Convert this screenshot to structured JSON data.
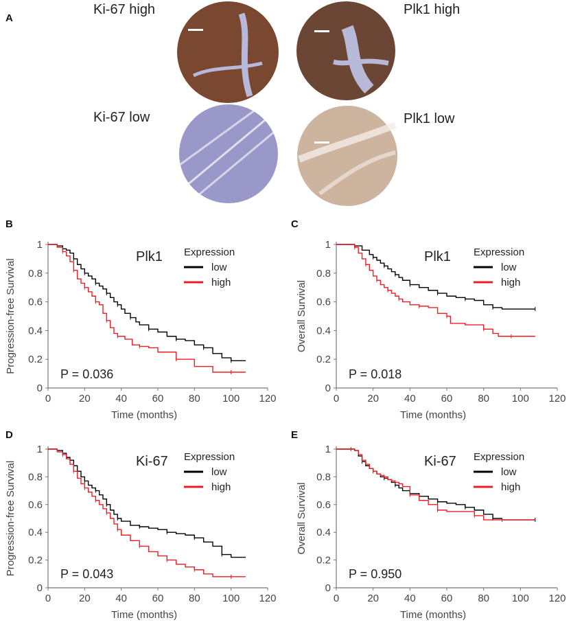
{
  "panel_letters": [
    "A",
    "B",
    "C",
    "D",
    "E"
  ],
  "ihc": {
    "labels": [
      "Ki-67 high",
      "Plk1 high",
      "Ki-67 low",
      "Plk1 low"
    ],
    "colors": {
      "high_ki67": "#7a4730",
      "high_plk1": "#6b4634",
      "low_ki67": "#9a98c8",
      "low_plk1": "#cdb49f",
      "stroma": "#b8b8d8"
    }
  },
  "legend_colors": {
    "low": "#000000",
    "high": "#ee1c25"
  },
  "chart_data": [
    {
      "panel": "B",
      "type": "line",
      "title": "Plk1",
      "ylabel": "Progression-free  Survival",
      "xlabel": "Time  (months)",
      "xlim": [
        0,
        120
      ],
      "ylim": [
        0,
        1
      ],
      "xticks": [
        0,
        20,
        40,
        60,
        80,
        100,
        120
      ],
      "yticks": [
        0,
        0.2,
        0.4,
        0.6,
        0.8,
        1
      ],
      "legend_title": "Expression",
      "p_value": "P = 0.036",
      "series": [
        {
          "name": "low",
          "color": "#000000",
          "x": [
            0,
            5,
            8,
            10,
            12,
            14,
            16,
            18,
            20,
            22,
            24,
            26,
            28,
            30,
            32,
            34,
            36,
            38,
            40,
            42,
            45,
            48,
            50,
            55,
            60,
            65,
            70,
            75,
            80,
            85,
            90,
            95,
            100,
            105,
            108
          ],
          "y": [
            1.0,
            0.99,
            0.97,
            0.96,
            0.94,
            0.9,
            0.86,
            0.83,
            0.8,
            0.78,
            0.76,
            0.73,
            0.71,
            0.69,
            0.66,
            0.63,
            0.6,
            0.58,
            0.55,
            0.52,
            0.49,
            0.46,
            0.44,
            0.41,
            0.39,
            0.36,
            0.34,
            0.33,
            0.3,
            0.28,
            0.24,
            0.21,
            0.19,
            0.19,
            0.19
          ]
        },
        {
          "name": "high",
          "color": "#ee1c25",
          "x": [
            0,
            5,
            8,
            10,
            12,
            14,
            16,
            18,
            20,
            22,
            24,
            26,
            28,
            30,
            32,
            34,
            36,
            38,
            42,
            46,
            50,
            55,
            60,
            70,
            80,
            90,
            100,
            108
          ],
          "y": [
            1.0,
            0.98,
            0.95,
            0.92,
            0.88,
            0.82,
            0.76,
            0.73,
            0.7,
            0.67,
            0.64,
            0.6,
            0.58,
            0.52,
            0.47,
            0.42,
            0.38,
            0.36,
            0.34,
            0.3,
            0.29,
            0.28,
            0.25,
            0.2,
            0.15,
            0.11,
            0.11,
            0.11
          ]
        }
      ]
    },
    {
      "panel": "C",
      "type": "line",
      "title": "Plk1",
      "ylabel": "Overall  Survival",
      "xlabel": "Time  (months)",
      "xlim": [
        0,
        120
      ],
      "ylim": [
        0,
        1
      ],
      "xticks": [
        0,
        20,
        40,
        60,
        80,
        100,
        120
      ],
      "yticks": [
        0,
        0.2,
        0.4,
        0.6,
        0.8,
        1
      ],
      "legend_title": "Expression",
      "p_value": "P = 0.018",
      "series": [
        {
          "name": "low",
          "color": "#000000",
          "x": [
            0,
            5,
            10,
            14,
            18,
            20,
            22,
            24,
            26,
            28,
            30,
            32,
            34,
            36,
            40,
            45,
            50,
            55,
            60,
            65,
            70,
            75,
            80,
            85,
            90,
            100,
            108
          ],
          "y": [
            1.0,
            1.0,
            0.99,
            0.96,
            0.93,
            0.91,
            0.89,
            0.87,
            0.85,
            0.83,
            0.81,
            0.79,
            0.77,
            0.75,
            0.72,
            0.7,
            0.68,
            0.66,
            0.64,
            0.63,
            0.62,
            0.61,
            0.58,
            0.56,
            0.55,
            0.55,
            0.55
          ]
        },
        {
          "name": "high",
          "color": "#ee1c25",
          "x": [
            0,
            5,
            10,
            12,
            14,
            16,
            18,
            20,
            22,
            24,
            26,
            28,
            30,
            32,
            34,
            36,
            40,
            45,
            50,
            55,
            60,
            62,
            70,
            80,
            85,
            88,
            95,
            108
          ],
          "y": [
            1.0,
            1.0,
            0.98,
            0.94,
            0.9,
            0.86,
            0.82,
            0.78,
            0.75,
            0.72,
            0.7,
            0.68,
            0.66,
            0.64,
            0.62,
            0.6,
            0.58,
            0.57,
            0.56,
            0.52,
            0.5,
            0.45,
            0.44,
            0.41,
            0.38,
            0.36,
            0.36,
            0.36
          ]
        }
      ]
    },
    {
      "panel": "D",
      "type": "line",
      "title": "Ki-67",
      "ylabel": "Progression-free  Survival",
      "xlabel": "Time  (months)",
      "xlim": [
        0,
        120
      ],
      "ylim": [
        0,
        1
      ],
      "xticks": [
        0,
        20,
        40,
        60,
        80,
        100,
        120
      ],
      "yticks": [
        0,
        0.2,
        0.4,
        0.6,
        0.8,
        1
      ],
      "legend_title": "Expression",
      "p_value": "P = 0.043",
      "series": [
        {
          "name": "low",
          "color": "#000000",
          "x": [
            0,
            5,
            8,
            10,
            12,
            14,
            16,
            18,
            20,
            22,
            24,
            26,
            28,
            30,
            32,
            34,
            36,
            38,
            40,
            45,
            50,
            55,
            60,
            65,
            70,
            75,
            80,
            85,
            90,
            95,
            100,
            108
          ],
          "y": [
            1.0,
            0.99,
            0.97,
            0.94,
            0.92,
            0.88,
            0.84,
            0.8,
            0.77,
            0.74,
            0.72,
            0.7,
            0.67,
            0.64,
            0.6,
            0.56,
            0.53,
            0.5,
            0.48,
            0.45,
            0.44,
            0.43,
            0.42,
            0.4,
            0.39,
            0.38,
            0.36,
            0.33,
            0.3,
            0.24,
            0.22,
            0.22
          ]
        },
        {
          "name": "high",
          "color": "#ee1c25",
          "x": [
            0,
            5,
            8,
            10,
            12,
            14,
            16,
            18,
            20,
            22,
            24,
            26,
            28,
            30,
            32,
            34,
            36,
            38,
            40,
            45,
            50,
            55,
            60,
            65,
            70,
            75,
            80,
            85,
            90,
            100,
            108
          ],
          "y": [
            1.0,
            0.98,
            0.96,
            0.93,
            0.89,
            0.84,
            0.79,
            0.75,
            0.72,
            0.69,
            0.66,
            0.63,
            0.6,
            0.57,
            0.54,
            0.5,
            0.46,
            0.42,
            0.38,
            0.34,
            0.3,
            0.26,
            0.23,
            0.2,
            0.17,
            0.15,
            0.13,
            0.1,
            0.08,
            0.08,
            0.08
          ]
        }
      ]
    },
    {
      "panel": "E",
      "type": "line",
      "title": "Ki-67",
      "ylabel": "Overall  Survival",
      "xlabel": "Time  (months)",
      "xlim": [
        0,
        120
      ],
      "ylim": [
        0,
        1
      ],
      "xticks": [
        0,
        20,
        40,
        60,
        80,
        100,
        120
      ],
      "yticks": [
        0,
        0.2,
        0.4,
        0.6,
        0.8,
        1
      ],
      "legend_title": "Expression",
      "p_value": "P = 0.950",
      "series": [
        {
          "name": "low",
          "color": "#000000",
          "x": [
            0,
            5,
            8,
            10,
            12,
            14,
            16,
            18,
            20,
            22,
            24,
            26,
            28,
            30,
            32,
            34,
            36,
            40,
            45,
            50,
            55,
            60,
            65,
            70,
            75,
            80,
            85,
            90,
            100,
            108
          ],
          "y": [
            1.0,
            1.0,
            1.0,
            0.99,
            0.95,
            0.91,
            0.88,
            0.86,
            0.84,
            0.82,
            0.8,
            0.79,
            0.78,
            0.76,
            0.74,
            0.72,
            0.7,
            0.68,
            0.66,
            0.64,
            0.62,
            0.61,
            0.6,
            0.58,
            0.56,
            0.53,
            0.5,
            0.49,
            0.49,
            0.49
          ]
        },
        {
          "name": "high",
          "color": "#ee1c25",
          "x": [
            0,
            5,
            8,
            10,
            12,
            14,
            16,
            18,
            20,
            22,
            24,
            26,
            28,
            30,
            32,
            34,
            36,
            40,
            45,
            50,
            55,
            60,
            70,
            75,
            80,
            85,
            90,
            100,
            108
          ],
          "y": [
            1.0,
            1.0,
            1.0,
            0.99,
            0.96,
            0.92,
            0.89,
            0.86,
            0.84,
            0.82,
            0.81,
            0.8,
            0.78,
            0.77,
            0.76,
            0.75,
            0.73,
            0.67,
            0.63,
            0.6,
            0.56,
            0.55,
            0.55,
            0.52,
            0.49,
            0.49,
            0.49,
            0.49,
            0.49
          ]
        }
      ]
    }
  ]
}
